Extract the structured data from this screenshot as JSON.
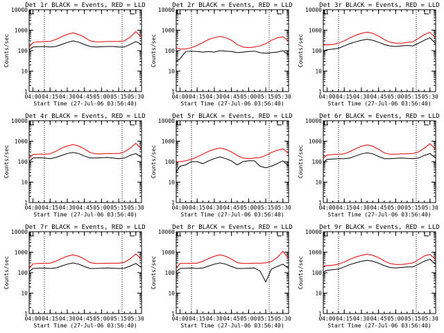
{
  "colors": {
    "events": "#000000",
    "lld": "#e00000"
  },
  "chart_data": [
    {
      "type": "line",
      "title": "Det 1r BLACK = Events, RED = LLD",
      "xlabel": "Start Time (27-Jul-06 03:56:40)",
      "ylabel": "Counts/sec",
      "yscale": "log",
      "ylim": [
        1,
        10000
      ],
      "x": [
        "03:56:40",
        "04:00",
        "04:05",
        "04:10",
        "04:15",
        "04:20",
        "04:25",
        "04:30",
        "04:35",
        "04:40",
        "04:45",
        "04:50",
        "04:55",
        "05:00",
        "05:05",
        "05:10",
        "05:15",
        "05:20",
        "05:25",
        "05:30",
        "05:35"
      ],
      "x_tick_labels": [
        "04:00",
        "04:15",
        "04:30",
        "04:45",
        "05:00",
        "05:15",
        "05:30"
      ],
      "y_tick_labels": [
        "1",
        "10",
        "100",
        "1000",
        "10000"
      ],
      "vertical_dotted_times": [
        "04:10",
        "05:18"
      ],
      "series": [
        {
          "name": "Events",
          "values": [
            110,
            150,
            155,
            160,
            150,
            160,
            200,
            250,
            300,
            260,
            200,
            160,
            150,
            155,
            160,
            160,
            150,
            150,
            200,
            280,
            200
          ]
        },
        {
          "name": "LLD",
          "values": [
            150,
            250,
            270,
            280,
            280,
            350,
            480,
            620,
            740,
            620,
            450,
            300,
            270,
            270,
            280,
            280,
            280,
            300,
            450,
            850,
            450
          ]
        }
      ]
    },
    {
      "type": "line",
      "title": "Det 2r BLACK = Events, RED = LLD",
      "xlabel": "Start Time (27-Jul-06 03:56:40)",
      "ylabel": "Counts/sec",
      "yscale": "log",
      "ylim": [
        1,
        10000
      ],
      "x": [
        "03:56:40",
        "04:00",
        "04:05",
        "04:10",
        "04:15",
        "04:20",
        "04:25",
        "04:30",
        "04:35",
        "04:40",
        "04:45",
        "04:50",
        "04:55",
        "05:00",
        "05:05",
        "05:10",
        "05:15",
        "05:20",
        "05:25",
        "05:30",
        "05:35"
      ],
      "x_tick_labels": [
        "04:00",
        "04:15",
        "04:30",
        "04:45",
        "05:00",
        "05:15",
        "05:30"
      ],
      "y_tick_labels": [
        "1",
        "10",
        "100",
        "1000",
        "10000"
      ],
      "vertical_dotted_times": [
        "04:10",
        "05:18"
      ],
      "series": [
        {
          "name": "Events",
          "values": [
            30,
            40,
            90,
            95,
            90,
            85,
            90,
            85,
            100,
            95,
            90,
            80,
            85,
            90,
            95,
            80,
            75,
            80,
            85,
            100,
            60
          ]
        },
        {
          "name": "LLD",
          "values": [
            140,
            120,
            120,
            140,
            180,
            250,
            350,
            430,
            500,
            430,
            320,
            200,
            150,
            140,
            150,
            170,
            220,
            320,
            420,
            480,
            300
          ]
        }
      ]
    },
    {
      "type": "line",
      "title": "Det 3r BLACK = Events, RED = LLD",
      "xlabel": "Start Time (27-Jul-06 03:56:40)",
      "ylabel": "Counts/sec",
      "yscale": "log",
      "ylim": [
        1,
        10000
      ],
      "x": [
        "03:56:40",
        "04:00",
        "04:05",
        "04:10",
        "04:15",
        "04:20",
        "04:25",
        "04:30",
        "04:35",
        "04:40",
        "04:45",
        "04:50",
        "04:55",
        "05:00",
        "05:05",
        "05:10",
        "05:15",
        "05:20",
        "05:25",
        "05:30",
        "05:35"
      ],
      "x_tick_labels": [
        "04:00",
        "04:15",
        "04:30",
        "04:45",
        "05:00",
        "05:15",
        "05:30"
      ],
      "y_tick_labels": [
        "1",
        "10",
        "100",
        "1000",
        "10000"
      ],
      "vertical_dotted_times": [
        "04:10",
        "05:18"
      ],
      "series": [
        {
          "name": "Events",
          "values": [
            100,
            110,
            120,
            130,
            170,
            220,
            270,
            320,
            360,
            320,
            260,
            200,
            170,
            160,
            170,
            180,
            170,
            230,
            320,
            420,
            220
          ]
        },
        {
          "name": "LLD",
          "values": [
            190,
            190,
            200,
            230,
            300,
            420,
            560,
            700,
            800,
            700,
            520,
            350,
            260,
            230,
            230,
            250,
            270,
            400,
            600,
            780,
            400
          ]
        }
      ]
    },
    {
      "type": "line",
      "title": "Det 4r BLACK = Events, RED = LLD",
      "xlabel": "Start Time (27-Jul-06 03:56:40)",
      "ylabel": "Counts/sec",
      "yscale": "log",
      "ylim": [
        1,
        10000
      ],
      "x": [
        "03:56:40",
        "04:00",
        "04:05",
        "04:10",
        "04:15",
        "04:20",
        "04:25",
        "04:30",
        "04:35",
        "04:40",
        "04:45",
        "04:50",
        "04:55",
        "05:00",
        "05:05",
        "05:10",
        "05:15",
        "05:20",
        "05:25",
        "05:30",
        "05:35"
      ],
      "x_tick_labels": [
        "04:00",
        "04:15",
        "04:30",
        "04:45",
        "05:00",
        "05:15",
        "05:30"
      ],
      "y_tick_labels": [
        "1",
        "10",
        "100",
        "1000",
        "10000"
      ],
      "vertical_dotted_times": [
        "04:10",
        "05:18"
      ],
      "series": [
        {
          "name": "Events",
          "values": [
            100,
            150,
            155,
            150,
            140,
            160,
            200,
            250,
            280,
            250,
            190,
            150,
            150,
            155,
            160,
            150,
            140,
            150,
            200,
            250,
            160
          ]
        },
        {
          "name": "LLD",
          "values": [
            150,
            220,
            230,
            230,
            240,
            320,
            450,
            580,
            680,
            580,
            420,
            280,
            240,
            240,
            250,
            250,
            250,
            300,
            450,
            780,
            420
          ]
        }
      ]
    },
    {
      "type": "line",
      "title": "Det 5r BLACK = Events, RED = LLD",
      "xlabel": "Start Time (27-Jul-06 03:56:40)",
      "ylabel": "Counts/sec",
      "yscale": "log",
      "ylim": [
        1,
        10000
      ],
      "x": [
        "03:56:40",
        "04:00",
        "04:05",
        "04:10",
        "04:15",
        "04:20",
        "04:25",
        "04:30",
        "04:35",
        "04:40",
        "04:45",
        "04:50",
        "04:55",
        "05:00",
        "05:05",
        "05:10",
        "05:15",
        "05:20",
        "05:25",
        "05:30",
        "05:35"
      ],
      "x_tick_labels": [
        "04:00",
        "04:15",
        "04:30",
        "04:45",
        "05:00",
        "05:15",
        "05:30"
      ],
      "y_tick_labels": [
        "1",
        "10",
        "100",
        "1000",
        "10000"
      ],
      "vertical_dotted_times": [
        "04:10",
        "05:18"
      ],
      "series": [
        {
          "name": "Events",
          "values": [
            30,
            60,
            70,
            100,
            100,
            80,
            110,
            140,
            170,
            140,
            110,
            70,
            100,
            110,
            110,
            60,
            50,
            60,
            80,
            110,
            60
          ]
        },
        {
          "name": "LLD",
          "values": [
            100,
            100,
            110,
            130,
            170,
            230,
            320,
            400,
            460,
            400,
            300,
            200,
            150,
            140,
            150,
            160,
            200,
            280,
            360,
            420,
            250
          ]
        }
      ]
    },
    {
      "type": "line",
      "title": "Det 6r BLACK = Events, RED = LLD",
      "xlabel": "Start Time (27-Jul-06 03:56:40)",
      "ylabel": "Counts/sec",
      "yscale": "log",
      "ylim": [
        1,
        10000
      ],
      "x": [
        "03:56:40",
        "04:00",
        "04:05",
        "04:10",
        "04:15",
        "04:20",
        "04:25",
        "04:30",
        "04:35",
        "04:40",
        "04:45",
        "04:50",
        "04:55",
        "05:00",
        "05:05",
        "05:10",
        "05:15",
        "05:20",
        "05:25",
        "05:30",
        "05:35"
      ],
      "x_tick_labels": [
        "04:00",
        "04:15",
        "04:30",
        "04:45",
        "05:00",
        "05:15",
        "05:30"
      ],
      "y_tick_labels": [
        "1",
        "10",
        "100",
        "1000",
        "10000"
      ],
      "vertical_dotted_times": [
        "04:10",
        "05:18"
      ],
      "series": [
        {
          "name": "Events",
          "values": [
            90,
            130,
            135,
            140,
            140,
            150,
            190,
            240,
            270,
            240,
            180,
            140,
            140,
            145,
            150,
            145,
            140,
            150,
            200,
            250,
            150
          ]
        },
        {
          "name": "LLD",
          "values": [
            150,
            210,
            220,
            230,
            240,
            310,
            430,
            560,
            660,
            560,
            400,
            270,
            230,
            230,
            240,
            240,
            250,
            300,
            450,
            750,
            400
          ]
        }
      ]
    },
    {
      "type": "line",
      "title": "Det 7r BLACK = Events, RED = LLD",
      "xlabel": "Start Time (27-Jul-06 03:56:40)",
      "ylabel": "Counts/sec",
      "yscale": "log",
      "ylim": [
        1,
        10000
      ],
      "x": [
        "03:56:40",
        "04:00",
        "04:05",
        "04:10",
        "04:15",
        "04:20",
        "04:25",
        "04:30",
        "04:35",
        "04:40",
        "04:45",
        "04:50",
        "04:55",
        "05:00",
        "05:05",
        "05:10",
        "05:15",
        "05:20",
        "05:25",
        "05:30",
        "05:35"
      ],
      "x_tick_labels": [
        "04:00",
        "04:15",
        "04:30",
        "04:45",
        "05:00",
        "05:15",
        "05:30"
      ],
      "y_tick_labels": [
        "1",
        "10",
        "100",
        "1000",
        "10000"
      ],
      "vertical_dotted_times": [
        "04:10",
        "05:18"
      ],
      "series": [
        {
          "name": "Events",
          "values": [
            110,
            160,
            165,
            170,
            160,
            170,
            210,
            260,
            300,
            260,
            200,
            160,
            160,
            165,
            170,
            165,
            160,
            165,
            210,
            280,
            180
          ]
        },
        {
          "name": "LLD",
          "values": [
            160,
            270,
            280,
            290,
            290,
            360,
            490,
            630,
            740,
            630,
            460,
            310,
            280,
            280,
            290,
            290,
            290,
            320,
            470,
            820,
            450
          ]
        }
      ]
    },
    {
      "type": "line",
      "title": "Det 8r BLACK = Events, RED = LLD",
      "xlabel": "Start Time (27-Jul-06 03:56:40)",
      "ylabel": "Counts/sec",
      "yscale": "log",
      "ylim": [
        1,
        10000
      ],
      "x": [
        "03:56:40",
        "04:00",
        "04:05",
        "04:10",
        "04:15",
        "04:20",
        "04:25",
        "04:30",
        "04:35",
        "04:40",
        "04:45",
        "04:50",
        "04:55",
        "05:00",
        "05:05",
        "05:10",
        "05:15",
        "05:20",
        "05:25",
        "05:30",
        "05:35"
      ],
      "x_tick_labels": [
        "04:00",
        "04:15",
        "04:30",
        "04:45",
        "05:00",
        "05:15",
        "05:30"
      ],
      "y_tick_labels": [
        "1",
        "10",
        "100",
        "1000",
        "10000"
      ],
      "vertical_dotted_times": [
        "04:10",
        "05:18"
      ],
      "series": [
        {
          "name": "Events",
          "values": [
            110,
            160,
            165,
            170,
            160,
            170,
            210,
            260,
            300,
            260,
            200,
            160,
            160,
            165,
            170,
            120,
            35,
            150,
            200,
            260,
            160
          ]
        },
        {
          "name": "LLD",
          "values": [
            160,
            280,
            280,
            290,
            290,
            360,
            490,
            630,
            740,
            630,
            460,
            310,
            280,
            280,
            290,
            290,
            300,
            350,
            550,
            1100,
            500
          ]
        }
      ]
    },
    {
      "type": "line",
      "title": "Det 9r BLACK = Events, RED = LLD",
      "xlabel": "Start Time (27-Jul-06 03:56:40)",
      "ylabel": "Counts/sec",
      "yscale": "log",
      "ylim": [
        1,
        10000
      ],
      "x": [
        "03:56:40",
        "04:00",
        "04:05",
        "04:10",
        "04:15",
        "04:20",
        "04:25",
        "04:30",
        "04:35",
        "04:40",
        "04:45",
        "04:50",
        "04:55",
        "05:00",
        "05:05",
        "05:10",
        "05:15",
        "05:20",
        "05:25",
        "05:30",
        "05:35"
      ],
      "x_tick_labels": [
        "04:00",
        "04:15",
        "04:30",
        "04:45",
        "05:00",
        "05:15",
        "05:30"
      ],
      "y_tick_labels": [
        "1",
        "10",
        "100",
        "1000",
        "10000"
      ],
      "vertical_dotted_times": [
        "04:10",
        "05:18"
      ],
      "series": [
        {
          "name": "Events",
          "values": [
            110,
            130,
            140,
            150,
            190,
            250,
            300,
            360,
            400,
            360,
            290,
            220,
            180,
            170,
            180,
            190,
            190,
            260,
            360,
            450,
            250
          ]
        },
        {
          "name": "LLD",
          "values": [
            210,
            220,
            230,
            260,
            330,
            450,
            580,
            700,
            800,
            700,
            550,
            370,
            280,
            250,
            250,
            270,
            300,
            430,
            650,
            780,
            430
          ]
        }
      ]
    }
  ]
}
